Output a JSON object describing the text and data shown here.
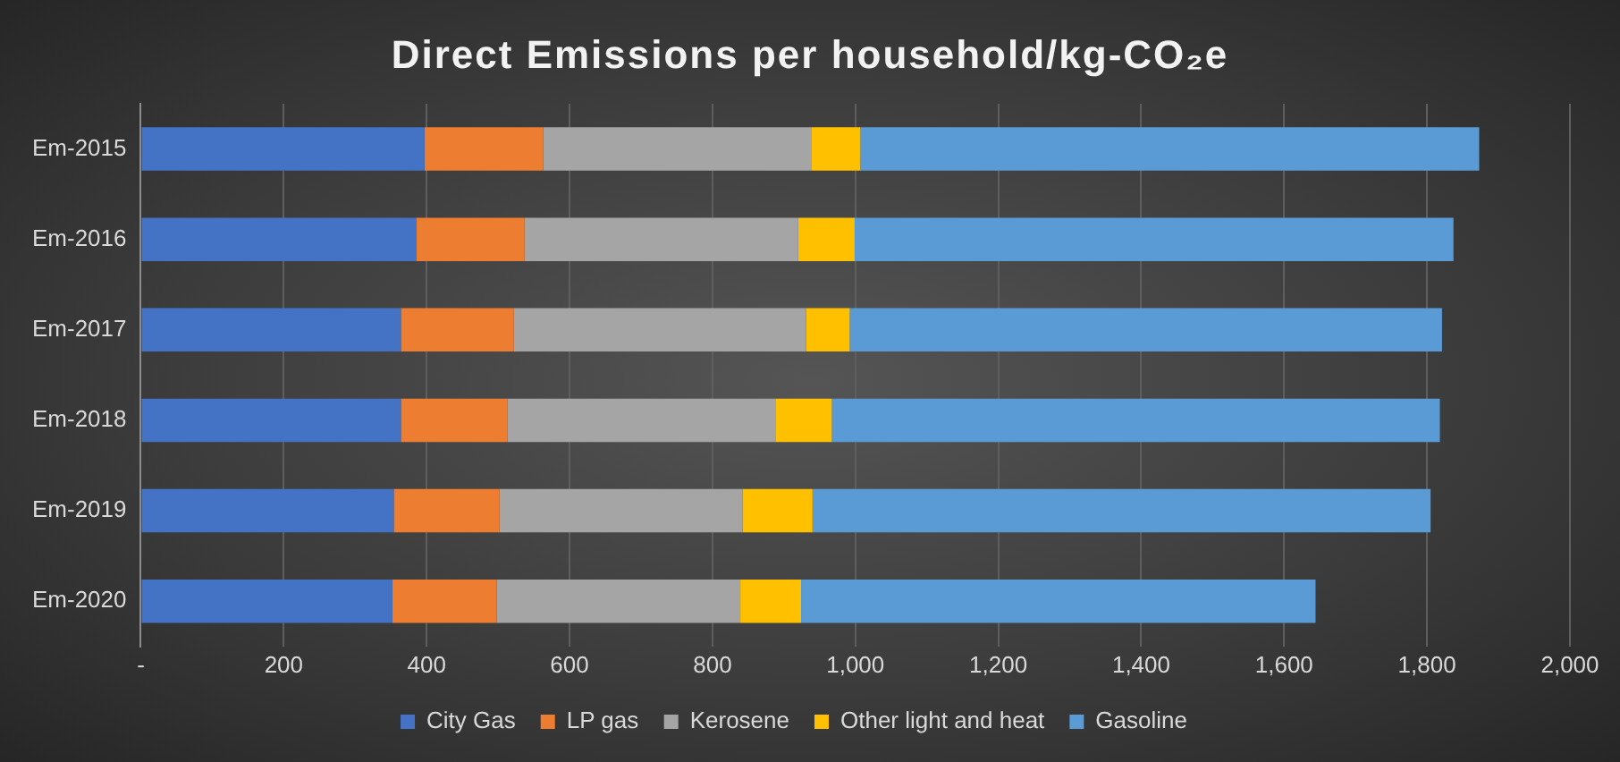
{
  "chart_data": {
    "type": "bar",
    "orientation": "horizontal",
    "stacked": true,
    "title": "Direct Emissions per household/kg-CO₂e",
    "categories": [
      "Em-2015",
      "Em-2016",
      "Em-2017",
      "Em-2018",
      "Em-2019",
      "Em-2020"
    ],
    "series": [
      {
        "name": "City Gas",
        "color": "#4472c4",
        "values": [
          397,
          386,
          364,
          364,
          354,
          352
        ]
      },
      {
        "name": "LP gas",
        "color": "#ed7d31",
        "values": [
          166,
          151,
          158,
          149,
          148,
          146
        ]
      },
      {
        "name": "Kerosene",
        "color": "#a5a5a5",
        "values": [
          376,
          383,
          409,
          375,
          340,
          341
        ]
      },
      {
        "name": "Other light and heat",
        "color": "#ffc000",
        "values": [
          68,
          79,
          61,
          79,
          98,
          85
        ]
      },
      {
        "name": "Gasoline",
        "color": "#5b9bd5",
        "values": [
          866,
          838,
          829,
          851,
          865,
          720
        ]
      }
    ],
    "xlim": [
      0,
      2000
    ],
    "xticks": [
      {
        "value": 0,
        "label": "-"
      },
      200,
      400,
      600,
      800,
      {
        "value": 1000,
        "label": "1,000"
      },
      {
        "value": 1200,
        "label": "1,200"
      },
      {
        "value": 1400,
        "label": "1,400"
      },
      {
        "value": 1600,
        "label": "1,600"
      },
      {
        "value": 1800,
        "label": "1,800"
      },
      {
        "value": 2000,
        "label": "2,000"
      }
    ],
    "grid": "x",
    "legend": "bottom"
  }
}
